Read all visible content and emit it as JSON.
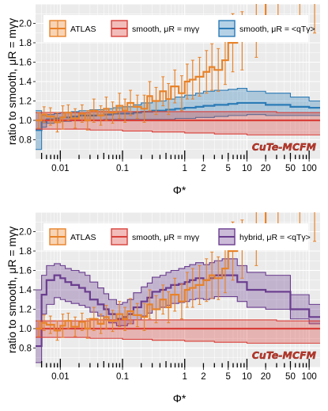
{
  "chart_data": [
    {
      "type": "line",
      "ylabel": "ratio to smooth, μR = mγγ",
      "xlabel": "Φ*",
      "x_scale": "log",
      "xlim": [
        0.004,
        150
      ],
      "ylim": [
        0.6,
        2.2
      ],
      "yticks": [
        0.8,
        1.0,
        1.2,
        1.4,
        1.6,
        1.8,
        2.0
      ],
      "ytick_labels": [
        "0.8",
        "1.0",
        "1.2",
        "1.4",
        "1.6",
        "1.8",
        "2.0"
      ],
      "xticks": [
        0.01,
        0.1,
        1,
        2,
        5,
        10,
        20,
        50,
        100
      ],
      "xtick_labels": [
        "0.01",
        "0.1",
        "1",
        "2",
        "5",
        "10",
        "20",
        "50",
        "100"
      ],
      "watermark": "CuTe-MCFM",
      "grid": true,
      "legend_position": "top",
      "legend": [
        {
          "label": "ATLAS",
          "color": "#e8832a"
        },
        {
          "label": "smooth, μR = mγγ",
          "color": "#d9403a"
        },
        {
          "label": "smooth, μR = <qTγ>",
          "color": "#2c7bb6"
        }
      ],
      "series": [
        {
          "name": "smooth, μR = <qTγ>",
          "color": "#2c7bb6",
          "edges": [
            0.004,
            0.005,
            0.006,
            0.008,
            0.01,
            0.015,
            0.02,
            0.03,
            0.05,
            0.07,
            0.1,
            0.15,
            0.2,
            0.3,
            0.5,
            0.7,
            1,
            1.5,
            2,
            3,
            5,
            7,
            10,
            20,
            50,
            100,
            150
          ],
          "center": [
            0.9,
            0.98,
            1.01,
            1.02,
            1.03,
            1.04,
            1.05,
            1.05,
            1.06,
            1.07,
            1.07,
            1.08,
            1.09,
            1.1,
            1.11,
            1.12,
            1.13,
            1.14,
            1.15,
            1.16,
            1.17,
            1.18,
            1.18,
            1.16,
            1.14,
            1.13
          ],
          "lower": [
            0.7,
            0.93,
            0.97,
            0.98,
            0.99,
            1.0,
            1.0,
            1.0,
            1.01,
            1.01,
            1.01,
            1.01,
            1.01,
            1.01,
            1.01,
            1.02,
            1.02,
            1.03,
            1.03,
            1.04,
            1.05,
            1.05,
            1.06,
            1.05,
            1.05,
            1.05
          ],
          "upper": [
            1.1,
            1.05,
            1.06,
            1.07,
            1.08,
            1.09,
            1.1,
            1.11,
            1.12,
            1.13,
            1.14,
            1.16,
            1.18,
            1.2,
            1.22,
            1.24,
            1.26,
            1.28,
            1.3,
            1.31,
            1.32,
            1.33,
            1.3,
            1.28,
            1.24,
            1.2
          ]
        },
        {
          "name": "smooth, μR = mγγ",
          "color": "#d9403a",
          "edges": [
            0.004,
            0.01,
            0.03,
            0.1,
            0.3,
            1,
            3,
            10,
            30,
            100,
            150
          ],
          "center": [
            1.0,
            1.0,
            1.0,
            1.0,
            1.0,
            1.0,
            1.0,
            1.0,
            1.0,
            1.0
          ],
          "lower": [
            0.91,
            0.91,
            0.9,
            0.89,
            0.88,
            0.87,
            0.86,
            0.85,
            0.85,
            0.85
          ],
          "upper": [
            1.08,
            1.08,
            1.09,
            1.09,
            1.09,
            1.09,
            1.09,
            1.09,
            1.08,
            1.08
          ]
        },
        {
          "name": "ATLAS",
          "color": "#e8832a",
          "edges": [
            0.004,
            0.005,
            0.006,
            0.008,
            0.01,
            0.012,
            0.015,
            0.02,
            0.025,
            0.03,
            0.04,
            0.05,
            0.06,
            0.08,
            0.1,
            0.12,
            0.15,
            0.2,
            0.25,
            0.3,
            0.4,
            0.5,
            0.6,
            0.8,
            1,
            1.2,
            1.5,
            2,
            2.5,
            3,
            4,
            5,
            7,
            10,
            20,
            50,
            100,
            150
          ],
          "values": [
            1.0,
            1.06,
            1.04,
            0.98,
            1.03,
            1.08,
            1.02,
            1.07,
            1.0,
            1.1,
            1.05,
            1.12,
            1.08,
            1.15,
            1.1,
            1.18,
            1.14,
            1.12,
            1.25,
            1.2,
            1.3,
            1.22,
            1.35,
            1.28,
            1.4,
            1.42,
            1.45,
            1.5,
            1.55,
            1.52,
            1.62,
            1.8,
            1.82,
            2.0,
            2.25,
            2.3,
            2.4
          ],
          "err": [
            0.08,
            0.08,
            0.09,
            0.1,
            0.12,
            0.08,
            0.1,
            0.09,
            0.1,
            0.12,
            0.1,
            0.12,
            0.11,
            0.13,
            0.12,
            0.13,
            0.12,
            0.14,
            0.15,
            0.14,
            0.15,
            0.16,
            0.17,
            0.18,
            0.18,
            0.2,
            0.2,
            0.22,
            0.24,
            0.22,
            0.25,
            0.3,
            0.3,
            0.35,
            0.4,
            0.45,
            0.5
          ]
        }
      ]
    },
    {
      "type": "line",
      "ylabel": "ratio to smooth, μR = mγγ",
      "xlabel": "Φ*",
      "x_scale": "log",
      "xlim": [
        0.004,
        150
      ],
      "ylim": [
        0.6,
        2.2
      ],
      "yticks": [
        0.8,
        1.0,
        1.2,
        1.4,
        1.6,
        1.8,
        2.0
      ],
      "ytick_labels": [
        "0.8",
        "1.0",
        "1.2",
        "1.4",
        "1.6",
        "1.8",
        "2.0"
      ],
      "xticks": [
        0.01,
        0.1,
        1,
        2,
        5,
        10,
        20,
        50,
        100
      ],
      "xtick_labels": [
        "0.01",
        "0.1",
        "1",
        "2",
        "5",
        "10",
        "20",
        "50",
        "100"
      ],
      "watermark": "CuTe-MCFM",
      "grid": true,
      "legend_position": "top",
      "legend": [
        {
          "label": "ATLAS",
          "color": "#e8832a"
        },
        {
          "label": "smooth, μR = mγγ",
          "color": "#d9403a"
        },
        {
          "label": "hybrid, μR = <qTγ>",
          "color": "#6a3d8f"
        }
      ],
      "series": [
        {
          "name": "hybrid, μR = <qTγ>",
          "color": "#6a3d8f",
          "edges": [
            0.004,
            0.005,
            0.006,
            0.008,
            0.01,
            0.012,
            0.015,
            0.02,
            0.025,
            0.03,
            0.04,
            0.05,
            0.06,
            0.08,
            0.1,
            0.12,
            0.15,
            0.2,
            0.25,
            0.3,
            0.4,
            0.5,
            0.6,
            0.8,
            1,
            1.2,
            1.5,
            2,
            2.5,
            3,
            4,
            5,
            7,
            10,
            20,
            50,
            100,
            150
          ],
          "center": [
            0.82,
            1.35,
            1.5,
            1.55,
            1.52,
            1.48,
            1.45,
            1.42,
            1.38,
            1.3,
            1.25,
            1.2,
            1.15,
            1.1,
            1.12,
            1.15,
            1.22,
            1.28,
            1.32,
            1.38,
            1.4,
            1.42,
            1.45,
            1.46,
            1.48,
            1.5,
            1.52,
            1.5,
            1.52,
            1.55,
            1.55,
            1.55,
            1.48,
            1.4,
            1.38,
            1.2,
            1.12
          ],
          "lower": [
            0.65,
            1.15,
            1.25,
            1.32,
            1.3,
            1.28,
            1.26,
            1.24,
            1.22,
            1.17,
            1.13,
            1.09,
            1.06,
            1.03,
            1.03,
            1.05,
            1.09,
            1.13,
            1.16,
            1.2,
            1.22,
            1.24,
            1.26,
            1.27,
            1.28,
            1.3,
            1.31,
            1.3,
            1.31,
            1.33,
            1.33,
            1.33,
            1.28,
            1.22,
            1.2,
            1.1,
            1.05
          ],
          "upper": [
            1.4,
            1.55,
            1.65,
            1.67,
            1.65,
            1.62,
            1.6,
            1.58,
            1.55,
            1.48,
            1.42,
            1.36,
            1.3,
            1.25,
            1.27,
            1.3,
            1.37,
            1.43,
            1.47,
            1.53,
            1.55,
            1.58,
            1.6,
            1.62,
            1.64,
            1.66,
            1.68,
            1.66,
            1.68,
            1.7,
            1.72,
            1.72,
            1.65,
            1.58,
            1.55,
            1.35,
            1.25
          ]
        },
        {
          "name": "smooth, μR = mγγ",
          "color": "#d9403a",
          "edges": [
            0.004,
            0.01,
            0.03,
            0.1,
            0.3,
            1,
            3,
            10,
            30,
            100,
            150
          ],
          "center": [
            1.0,
            1.0,
            1.0,
            1.0,
            1.0,
            1.0,
            1.0,
            1.0,
            1.0,
            1.0
          ],
          "lower": [
            0.91,
            0.91,
            0.9,
            0.89,
            0.88,
            0.87,
            0.86,
            0.85,
            0.85,
            0.85
          ],
          "upper": [
            1.08,
            1.08,
            1.09,
            1.09,
            1.09,
            1.09,
            1.09,
            1.09,
            1.08,
            1.08
          ]
        },
        {
          "name": "ATLAS",
          "color": "#e8832a",
          "edges": [
            0.004,
            0.005,
            0.006,
            0.008,
            0.01,
            0.012,
            0.015,
            0.02,
            0.025,
            0.03,
            0.04,
            0.05,
            0.06,
            0.08,
            0.1,
            0.12,
            0.15,
            0.2,
            0.25,
            0.3,
            0.4,
            0.5,
            0.6,
            0.8,
            1,
            1.2,
            1.5,
            2,
            2.5,
            3,
            4,
            5,
            7,
            10,
            20,
            50,
            100,
            150
          ],
          "values": [
            1.0,
            1.06,
            1.04,
            0.98,
            1.03,
            1.08,
            1.02,
            1.07,
            1.0,
            1.1,
            1.05,
            1.12,
            1.08,
            1.15,
            1.1,
            1.18,
            1.14,
            1.12,
            1.25,
            1.2,
            1.3,
            1.22,
            1.35,
            1.28,
            1.4,
            1.42,
            1.45,
            1.5,
            1.55,
            1.52,
            1.62,
            1.8,
            1.82,
            2.0,
            2.25,
            2.3,
            2.4
          ],
          "err": [
            0.08,
            0.08,
            0.09,
            0.1,
            0.12,
            0.08,
            0.1,
            0.09,
            0.1,
            0.12,
            0.1,
            0.12,
            0.11,
            0.13,
            0.12,
            0.13,
            0.12,
            0.14,
            0.15,
            0.14,
            0.15,
            0.16,
            0.17,
            0.18,
            0.18,
            0.2,
            0.2,
            0.22,
            0.24,
            0.22,
            0.25,
            0.3,
            0.3,
            0.35,
            0.4,
            0.45,
            0.5
          ]
        }
      ]
    }
  ]
}
